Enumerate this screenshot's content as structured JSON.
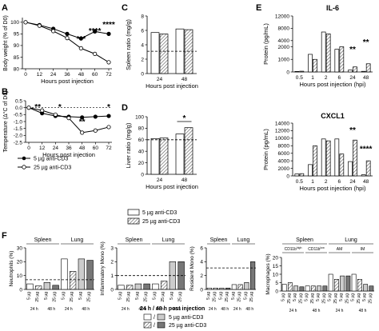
{
  "chart_data": [
    {
      "panel": "A",
      "type": "line",
      "x": [
        0,
        12,
        24,
        36,
        48,
        60,
        72
      ],
      "xlabel": "Hours post injection",
      "ylabel": "Body weight (% of D0)",
      "xticks": [
        "0",
        "12",
        "24",
        "36",
        "48",
        "60",
        "72"
      ],
      "yticks": [
        "80",
        "85",
        "90",
        "95",
        "100"
      ],
      "ylim": [
        80,
        102
      ],
      "series": [
        {
          "name": "5 µg anti-CD3",
          "values": [
            100,
            98.8,
            97.2,
            95.0,
            93.0,
            96.0,
            95.0
          ],
          "color": "#000000",
          "marker": "filled"
        },
        {
          "name": "25 µg anti-CD3",
          "values": [
            100,
            98.5,
            96.2,
            93.2,
            88.8,
            86.4,
            82.8
          ],
          "color": "#000000",
          "marker": "open"
        }
      ],
      "annotations": [
        {
          "x": 48,
          "label": "***"
        },
        {
          "x": 60,
          "label": "****"
        },
        {
          "x": 72,
          "label": "****"
        }
      ]
    },
    {
      "panel": "B",
      "type": "line",
      "x": [
        0,
        12,
        24,
        36,
        48,
        60,
        72
      ],
      "xlabel": "Hours post injection",
      "ylabel": "Temperature (Δ°C of D0)",
      "xticks": [
        "0",
        "12",
        "24",
        "36",
        "48",
        "60",
        "72"
      ],
      "yticks": [
        "0.5",
        "0.0",
        "-0.5",
        "-1.0",
        "-1.5",
        "-2.0",
        "-2.5"
      ],
      "ylim": [
        -2.5,
        0.5
      ],
      "series": [
        {
          "name": "5 µg anti-CD3",
          "values": [
            0.0,
            -0.4,
            -0.6,
            -0.65,
            -0.7,
            -0.65,
            -0.6
          ]
        },
        {
          "name": "25 µg anti-CD3",
          "values": [
            0.0,
            -0.2,
            -0.5,
            -0.75,
            -1.8,
            -1.65,
            -1.4
          ]
        }
      ],
      "annotations": [
        {
          "x": 8,
          "label": "**"
        },
        {
          "x": 28,
          "label": "*"
        },
        {
          "x": 48,
          "label": "**"
        },
        {
          "x": 72,
          "label": "*"
        }
      ]
    },
    {
      "panel": "C",
      "type": "bar",
      "categories": [
        "24",
        "48"
      ],
      "xlabel": "Hours post injection",
      "ylabel": "Spleen ratio (mg/g)",
      "yticks": [
        "0",
        "2",
        "4",
        "6",
        "8"
      ],
      "ylim": [
        0,
        8
      ],
      "series": [
        {
          "name": "5 µg anti-CD3",
          "values": [
            5.7,
            6.2
          ]
        },
        {
          "name": "25 µg anti-CD3",
          "values": [
            5.5,
            6.1
          ]
        }
      ],
      "reference_line": 3.1
    },
    {
      "panel": "D",
      "type": "bar",
      "categories": [
        "24",
        "48"
      ],
      "xlabel": "Hours post injection",
      "ylabel": "Liver ratio (mg/g)",
      "yticks": [
        "0",
        "20",
        "40",
        "60",
        "80",
        "100"
      ],
      "ylim": [
        0,
        100
      ],
      "series": [
        {
          "name": "5 µg anti-CD3",
          "values": [
            62,
            70
          ]
        },
        {
          "name": "25 µg anti-CD3",
          "values": [
            63,
            81
          ]
        }
      ],
      "reference_line": 60,
      "annotations": [
        {
          "category": "48",
          "label": "*"
        }
      ]
    },
    {
      "panel": "E",
      "type": "bar",
      "title": "IL-6",
      "categories": [
        "0.5",
        "1",
        "2",
        "6",
        "24",
        "48"
      ],
      "xlabel": "Hours post injection (hpi)",
      "ylabel": "Protein (pg/mL)",
      "yticks": [
        "0",
        "1000",
        "2000",
        "4000",
        "8000",
        "12000"
      ],
      "series": [
        {
          "name": "5 µg anti-CD3",
          "values": [
            40,
            1400,
            6800,
            1800,
            150,
            50
          ]
        },
        {
          "name": "25 µg anti-CD3",
          "values": [
            60,
            1000,
            6200,
            2000,
            400,
            650
          ]
        }
      ],
      "annotations": [
        {
          "category": "24",
          "label": "**"
        },
        {
          "category": "48",
          "label": "**"
        }
      ]
    },
    {
      "panel": "E",
      "type": "bar",
      "title": "CXCL1",
      "categories": [
        "0.5",
        "1",
        "2",
        "6",
        "24",
        "48"
      ],
      "xlabel": "Hours post injection (hpi)",
      "ylabel": "Protein (pg/mL)",
      "yticks": [
        "0",
        "2000",
        "4000",
        "6000",
        "8000",
        "10000",
        "12000",
        "14000"
      ],
      "ylim": [
        0,
        14000
      ],
      "series": [
        {
          "name": "5 µg anti-CD3",
          "values": [
            500,
            3000,
            9800,
            9800,
            3800,
            300
          ]
        },
        {
          "name": "25 µg anti-CD3",
          "values": [
            600,
            8000,
            9300,
            5800,
            9500,
            4000
          ]
        }
      ],
      "annotations": [
        {
          "category": "24",
          "label": "**"
        },
        {
          "category": "48",
          "label": "****"
        }
      ]
    },
    {
      "panel": "F",
      "type": "bar",
      "ylabel": "Neutrophils (%)",
      "groups": [
        "Spleen",
        "Lung"
      ],
      "yticks": [
        "0",
        "10",
        "20",
        "30"
      ],
      "ylim": [
        0,
        30
      ],
      "values": [
        4,
        2.5,
        5,
        3,
        22,
        13,
        22,
        21
      ],
      "reference_line": 7
    },
    {
      "panel": "F",
      "type": "bar",
      "ylabel": "Inflammatory Mono (%)",
      "groups": [
        "Spleen",
        "Lung"
      ],
      "yticks": [
        "0",
        "1",
        "2",
        "3"
      ],
      "ylim": [
        0,
        3
      ],
      "values": [
        0.3,
        0.3,
        0.4,
        0.4,
        0.4,
        0.6,
        2.0,
        2.0
      ],
      "reference_line": 1.0
    },
    {
      "panel": "F",
      "type": "bar",
      "ylabel": "Resident Mono (%)",
      "groups": [
        "Spleen",
        "Lung"
      ],
      "yticks": [
        "0",
        "2",
        "4",
        "6"
      ],
      "ylim": [
        0,
        6
      ],
      "values": [
        0.2,
        0.2,
        0.2,
        0.2,
        0.7,
        0.7,
        1.0,
        4.0
      ],
      "reference_line": 3.1
    },
    {
      "panel": "F",
      "type": "bar",
      "ylabel": "Macrophages (%)",
      "groups": [
        "Spleen",
        "Lung"
      ],
      "subgroups": [
        "CD11b^high",
        "CD11b^low",
        "AM",
        "IM"
      ],
      "yticks": [
        "0",
        "5",
        "10",
        "15",
        "20"
      ],
      "ylim": [
        0,
        20
      ],
      "values": [
        4,
        5,
        3,
        2.5,
        3,
        3,
        3,
        3,
        10,
        7,
        9,
        9,
        10,
        7,
        4,
        3
      ]
    }
  ],
  "labels": {
    "panel_a": "A",
    "panel_b": "B",
    "panel_c": "C",
    "panel_d": "D",
    "panel_e": "E",
    "panel_f": "F",
    "dose_5": "5 µg anti-CD3",
    "dose_25": "25 µg anti-CD3",
    "cat_5ug": "5 µg",
    "cat_25ug": "25 µg",
    "h24": "24 h",
    "h48": "48 h",
    "spleen": "Spleen",
    "lung": "Lung",
    "cd11b_high": "CD11b",
    "cd11b_high_sup": "high",
    "cd11b_low": "CD11b",
    "cd11b_low_sup": "low",
    "am": "AM",
    "im": "IM",
    "bottom_legend_title": "24 h / 48 h post injection",
    "slash": "/"
  }
}
